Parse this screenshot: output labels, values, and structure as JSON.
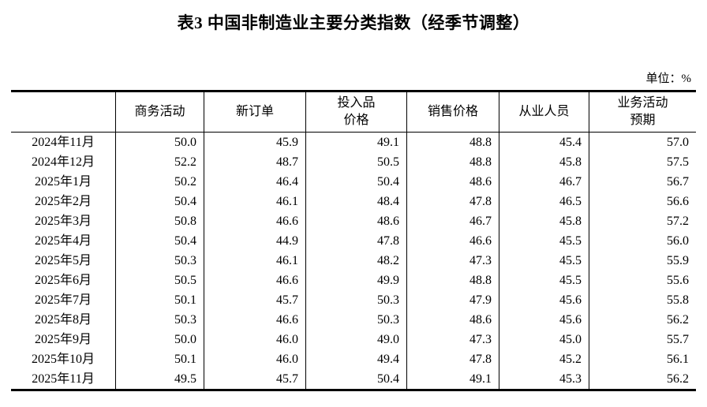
{
  "title": "表3 中国非制造业主要分类指数（经季节调整）",
  "unit_label": "单位：%",
  "table": {
    "columns": [
      "",
      "商务活动",
      "新订单",
      "投入品\n价格",
      "销售价格",
      "从业人员",
      "业务活动\n预期"
    ],
    "rows": [
      [
        "2024年11月",
        "50.0",
        "45.9",
        "49.1",
        "48.8",
        "45.4",
        "57.0"
      ],
      [
        "2024年12月",
        "52.2",
        "48.7",
        "50.5",
        "48.8",
        "45.8",
        "57.5"
      ],
      [
        "2025年1月",
        "50.2",
        "46.4",
        "50.4",
        "48.6",
        "46.7",
        "56.7"
      ],
      [
        "2025年2月",
        "50.4",
        "46.1",
        "48.4",
        "47.8",
        "46.5",
        "56.6"
      ],
      [
        "2025年3月",
        "50.8",
        "46.6",
        "48.6",
        "46.7",
        "45.8",
        "57.2"
      ],
      [
        "2025年4月",
        "50.4",
        "44.9",
        "47.8",
        "46.6",
        "45.5",
        "56.0"
      ],
      [
        "2025年5月",
        "50.3",
        "46.1",
        "48.2",
        "47.3",
        "45.5",
        "55.9"
      ],
      [
        "2025年6月",
        "50.5",
        "46.6",
        "49.9",
        "48.8",
        "45.5",
        "55.6"
      ],
      [
        "2025年7月",
        "50.1",
        "45.7",
        "50.3",
        "47.9",
        "45.6",
        "55.8"
      ],
      [
        "2025年8月",
        "50.3",
        "46.6",
        "50.3",
        "48.6",
        "45.6",
        "56.2"
      ],
      [
        "2025年9月",
        "50.0",
        "46.0",
        "49.0",
        "47.3",
        "45.0",
        "55.7"
      ],
      [
        "2025年10月",
        "50.1",
        "46.0",
        "49.4",
        "47.8",
        "45.2",
        "56.1"
      ],
      [
        "2025年11月",
        "49.5",
        "45.7",
        "50.4",
        "49.1",
        "45.3",
        "56.2"
      ]
    ]
  },
  "colors": {
    "text": "#000000",
    "border": "#000000",
    "background": "#ffffff"
  }
}
